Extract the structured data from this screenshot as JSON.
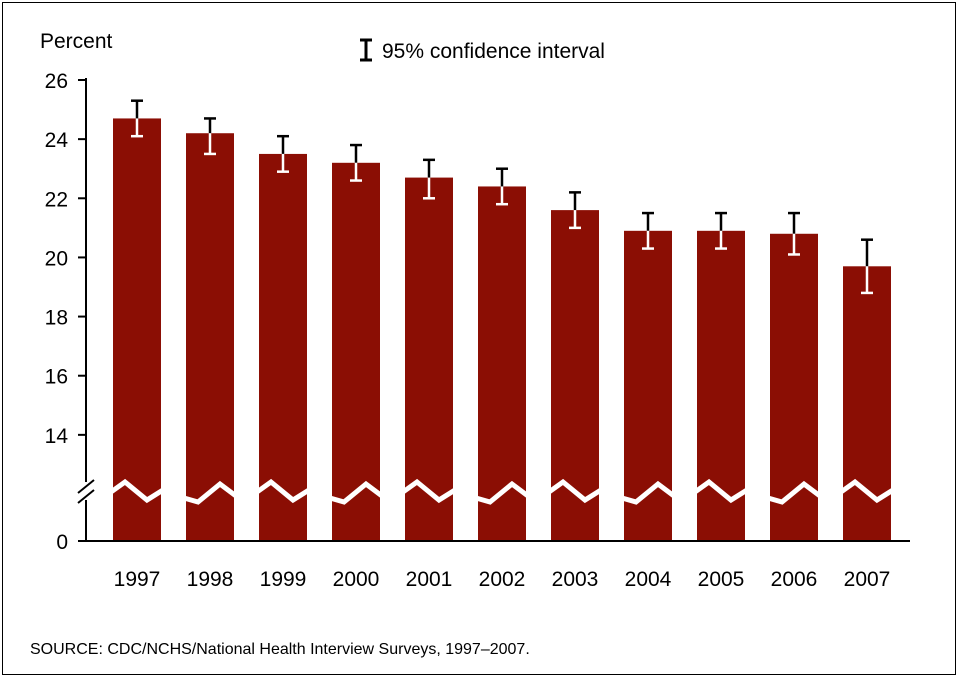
{
  "chart_data": {
    "type": "bar",
    "ylabel": "Percent",
    "categories": [
      "1997",
      "1998",
      "1999",
      "2000",
      "2001",
      "2002",
      "2003",
      "2004",
      "2005",
      "2006",
      "2007"
    ],
    "values": [
      24.7,
      24.2,
      23.5,
      23.2,
      22.7,
      22.4,
      21.6,
      20.9,
      20.9,
      20.8,
      19.7
    ],
    "ci_lower": [
      24.1,
      23.5,
      22.9,
      22.6,
      22.0,
      21.8,
      21.0,
      20.3,
      20.3,
      20.1,
      18.8
    ],
    "ci_upper": [
      25.3,
      24.7,
      24.1,
      23.8,
      23.3,
      23.0,
      22.2,
      21.5,
      21.5,
      21.5,
      20.6
    ],
    "ylim": [
      0,
      26
    ],
    "axis_break": [
      0,
      12
    ],
    "yticks": [
      "26",
      "24",
      "22",
      "20",
      "18",
      "16",
      "14",
      "0"
    ],
    "bar_color": "#8b0e04",
    "legend": "95% confidence interval",
    "legend_position": "top-center",
    "grid": false
  },
  "source": "SOURCE: CDC/NCHS/National Health Interview Surveys, 1997–2007."
}
